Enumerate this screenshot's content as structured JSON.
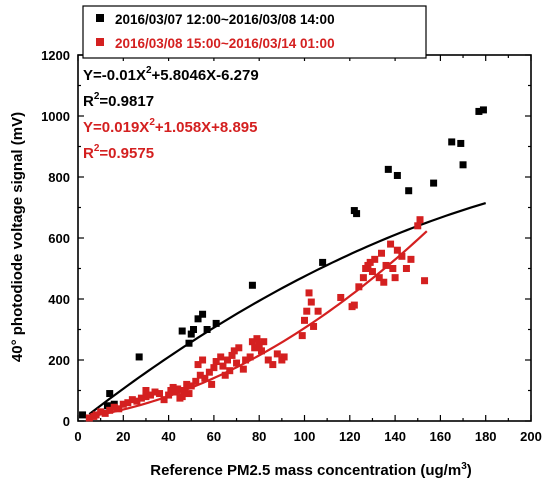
{
  "chart_data": {
    "type": "scatter",
    "xlabel": "Reference PM2.5 mass concentration (ug/m",
    "xlabel_sup": "3",
    "xlabel_end": ")",
    "ylabel": "40° photodiode voltage signal (mV)",
    "xlim": [
      0,
      200
    ],
    "ylim": [
      0,
      1200
    ],
    "x_ticks": [
      "0",
      "20",
      "40",
      "60",
      "80",
      "100",
      "120",
      "140",
      "160",
      "180",
      "200"
    ],
    "y_ticks": [
      "0",
      "200",
      "400",
      "600",
      "800",
      "1000",
      "1200"
    ],
    "legend_position": "top",
    "series": [
      {
        "name": "2016/03/07 12:00~2016/03/08 14:00",
        "color": "#000000",
        "marker": "square",
        "points": [
          [
            2,
            20
          ],
          [
            13,
            50
          ],
          [
            14,
            90
          ],
          [
            16,
            55
          ],
          [
            27,
            210
          ],
          [
            46,
            295
          ],
          [
            49,
            255
          ],
          [
            50,
            285
          ],
          [
            51,
            300
          ],
          [
            53,
            335
          ],
          [
            55,
            350
          ],
          [
            57,
            300
          ],
          [
            61,
            320
          ],
          [
            77,
            445
          ],
          [
            108,
            520
          ],
          [
            122,
            690
          ],
          [
            123,
            680
          ],
          [
            137,
            825
          ],
          [
            141,
            805
          ],
          [
            146,
            755
          ],
          [
            157,
            780
          ],
          [
            165,
            915
          ],
          [
            169,
            910
          ],
          [
            170,
            840
          ],
          [
            177,
            1015
          ],
          [
            179,
            1020
          ]
        ]
      },
      {
        "name": "2016/03/08 15:00~2016/03/14 01:00",
        "color": "#d42020",
        "marker": "square",
        "points": [
          [
            5,
            10
          ],
          [
            7,
            15
          ],
          [
            8,
            20
          ],
          [
            10,
            30
          ],
          [
            12,
            25
          ],
          [
            14,
            35
          ],
          [
            16,
            45
          ],
          [
            18,
            40
          ],
          [
            20,
            55
          ],
          [
            22,
            60
          ],
          [
            24,
            70
          ],
          [
            26,
            65
          ],
          [
            28,
            75
          ],
          [
            30,
            80
          ],
          [
            30,
            100
          ],
          [
            32,
            85
          ],
          [
            34,
            95
          ],
          [
            36,
            90
          ],
          [
            38,
            70
          ],
          [
            40,
            85
          ],
          [
            41,
            100
          ],
          [
            42,
            110
          ],
          [
            43,
            95
          ],
          [
            44,
            105
          ],
          [
            45,
            75
          ],
          [
            46,
            80
          ],
          [
            47,
            100
          ],
          [
            48,
            120
          ],
          [
            49,
            90
          ],
          [
            50,
            115
          ],
          [
            52,
            130
          ],
          [
            53,
            185
          ],
          [
            54,
            150
          ],
          [
            55,
            200
          ],
          [
            56,
            140
          ],
          [
            58,
            160
          ],
          [
            59,
            120
          ],
          [
            60,
            175
          ],
          [
            61,
            195
          ],
          [
            63,
            210
          ],
          [
            64,
            180
          ],
          [
            65,
            150
          ],
          [
            66,
            200
          ],
          [
            67,
            165
          ],
          [
            68,
            215
          ],
          [
            69,
            230
          ],
          [
            70,
            190
          ],
          [
            71,
            240
          ],
          [
            73,
            170
          ],
          [
            74,
            200
          ],
          [
            76,
            210
          ],
          [
            77,
            260
          ],
          [
            78,
            240
          ],
          [
            79,
            270
          ],
          [
            80,
            250
          ],
          [
            81,
            230
          ],
          [
            82,
            260
          ],
          [
            84,
            200
          ],
          [
            86,
            185
          ],
          [
            88,
            220
          ],
          [
            90,
            200
          ],
          [
            91,
            210
          ],
          [
            99,
            280
          ],
          [
            100,
            330
          ],
          [
            101,
            360
          ],
          [
            102,
            420
          ],
          [
            103,
            390
          ],
          [
            104,
            310
          ],
          [
            106,
            360
          ],
          [
            116,
            405
          ],
          [
            121,
            375
          ],
          [
            122,
            380
          ],
          [
            124,
            440
          ],
          [
            126,
            470
          ],
          [
            127,
            500
          ],
          [
            128,
            510
          ],
          [
            129,
            520
          ],
          [
            130,
            490
          ],
          [
            131,
            530
          ],
          [
            133,
            470
          ],
          [
            134,
            550
          ],
          [
            135,
            455
          ],
          [
            136,
            510
          ],
          [
            138,
            580
          ],
          [
            139,
            500
          ],
          [
            140,
            470
          ],
          [
            141,
            560
          ],
          [
            143,
            540
          ],
          [
            145,
            500
          ],
          [
            147,
            530
          ],
          [
            150,
            640
          ],
          [
            151,
            660
          ],
          [
            153,
            460
          ]
        ]
      }
    ],
    "fits": [
      {
        "equation_prefix": "Y=-0.01X",
        "equation_exp": "2",
        "equation_suffix": "+5.8046X-6.279",
        "r2_prefix": "R",
        "r2_exp": "2",
        "r2_suffix": "=0.9817",
        "color": "#000000",
        "x_range": [
          5,
          180
        ],
        "coef": [
          -0.01,
          5.8046,
          -6.279
        ]
      },
      {
        "equation_prefix": "Y=0.019X",
        "equation_exp": "2",
        "equation_suffix": "+1.058X+8.895",
        "r2_prefix": "R",
        "r2_exp": "2",
        "r2_suffix": "=0.9575",
        "color": "#d42020",
        "x_range": [
          5,
          154
        ],
        "coef": [
          0.019,
          1.058,
          8.895
        ]
      }
    ]
  }
}
